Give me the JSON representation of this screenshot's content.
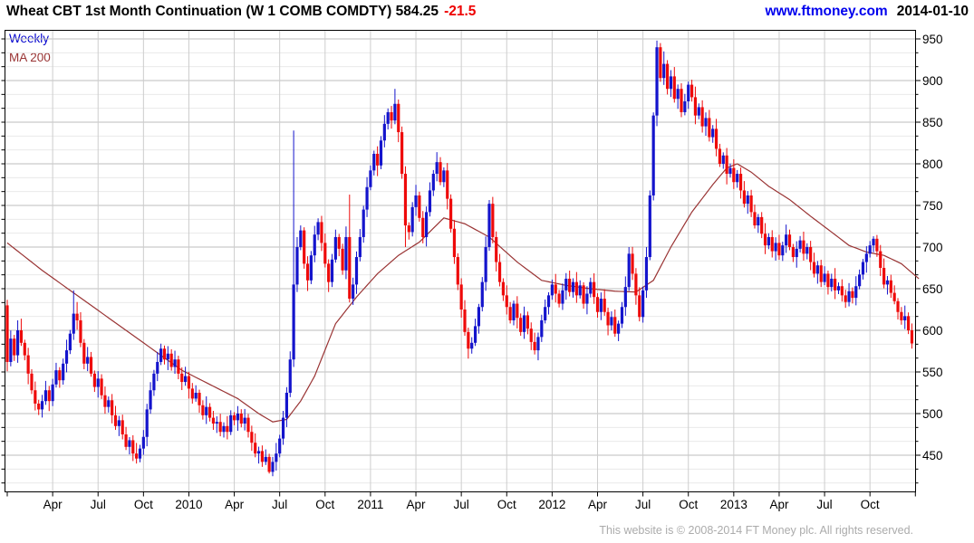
{
  "header": {
    "title": "Wheat CBT 1st Month Continuation (W 1 COMB COMDTY) 584.25",
    "change": "-21.5",
    "site": "www.ftmoney.com",
    "date": "2014-01-10"
  },
  "legend": {
    "series": "Weekly",
    "overlay": "MA 200"
  },
  "footer": {
    "copyright": "This website is © 2008-2014 FT Money plc. All rights reserved."
  },
  "colors": {
    "up": "#1414cc",
    "down": "#ee0a0a",
    "ma": "#993333",
    "grid_minor": "#e9e9e9",
    "grid_major": "#bdbdbd",
    "grid_vert": "#cdcdcd",
    "axis": "#000000",
    "change": "#ee0000",
    "link": "#0000ee",
    "weekly_label": "#0000cc",
    "footer_text": "#ababab",
    "label": "#000000"
  },
  "chart_data": {
    "type": "candlestick",
    "timeframe": "weekly",
    "title": "Wheat CBT 1st Month Continuation (W 1 COMB COMDTY)",
    "last_price": 584.25,
    "change": -21.5,
    "y_axis": {
      "ticks": [
        450,
        500,
        550,
        600,
        650,
        700,
        750,
        800,
        850,
        900,
        950
      ],
      "minor_per_major": 3,
      "position": "right"
    },
    "x_labels": [
      {
        "label": "Apr",
        "week": 13
      },
      {
        "label": "Jul",
        "week": 26
      },
      {
        "label": "Oct",
        "week": 39
      },
      {
        "label": "2010",
        "week": 52
      },
      {
        "label": "Apr",
        "week": 65
      },
      {
        "label": "Jul",
        "week": 78
      },
      {
        "label": "Oct",
        "week": 91
      },
      {
        "label": "2011",
        "week": 104
      },
      {
        "label": "Apr",
        "week": 117
      },
      {
        "label": "Jul",
        "week": 130
      },
      {
        "label": "Oct",
        "week": 143
      },
      {
        "label": "2012",
        "week": 156
      },
      {
        "label": "Apr",
        "week": 169
      },
      {
        "label": "Jul",
        "week": 182
      },
      {
        "label": "Oct",
        "week": 195
      },
      {
        "label": "2013",
        "week": 208
      },
      {
        "label": "Apr",
        "week": 221
      },
      {
        "label": "Jul",
        "week": 234
      },
      {
        "label": "Oct",
        "week": 247
      }
    ],
    "first_open": 630,
    "closes": [
      562,
      590,
      570,
      600,
      585,
      570,
      548,
      528,
      512,
      505,
      515,
      528,
      515,
      535,
      552,
      540,
      560,
      576,
      596,
      620,
      612,
      585,
      560,
      568,
      548,
      532,
      542,
      522,
      508,
      516,
      498,
      485,
      492,
      475,
      460,
      468,
      452,
      446,
      458,
      472,
      505,
      528,
      548,
      562,
      578,
      565,
      572,
      556,
      565,
      548,
      538,
      545,
      530,
      518,
      525,
      510,
      498,
      508,
      495,
      488,
      490,
      478,
      485,
      478,
      498,
      492,
      500,
      488,
      495,
      478,
      465,
      452,
      455,
      442,
      448,
      430,
      442,
      452,
      470,
      495,
      525,
      565,
      655,
      700,
      720,
      680,
      660,
      690,
      715,
      730,
      705,
      680,
      658,
      685,
      712,
      698,
      672,
      712,
      638,
      655,
      688,
      712,
      745,
      772,
      792,
      812,
      798,
      828,
      848,
      862,
      852,
      872,
      838,
      788,
      726,
      718,
      748,
      762,
      735,
      712,
      742,
      768,
      788,
      802,
      778,
      792,
      758,
      722,
      688,
      655,
      625,
      598,
      578,
      585,
      605,
      628,
      658,
      700,
      752,
      712,
      682,
      658,
      642,
      628,
      612,
      632,
      615,
      598,
      618,
      602,
      586,
      576,
      592,
      612,
      628,
      642,
      655,
      644,
      632,
      648,
      662,
      646,
      658,
      642,
      654,
      632,
      644,
      658,
      640,
      622,
      638,
      622,
      606,
      616,
      596,
      608,
      628,
      652,
      692,
      668,
      642,
      616,
      648,
      688,
      762,
      858,
      940,
      903,
      920,
      890,
      905,
      878,
      890,
      862,
      875,
      895,
      880,
      858,
      868,
      845,
      855,
      832,
      842,
      818,
      800,
      810,
      788,
      795,
      778,
      788,
      768,
      752,
      762,
      742,
      726,
      736,
      716,
      702,
      712,
      695,
      705,
      690,
      702,
      715,
      700,
      688,
      698,
      708,
      692,
      700,
      682,
      668,
      678,
      658,
      668,
      652,
      662,
      648,
      653,
      642,
      634,
      647,
      639,
      653,
      667,
      682,
      692,
      702,
      710,
      695,
      675,
      655,
      660,
      645,
      635,
      622,
      612,
      617,
      600,
      584.25
    ],
    "wick_pattern": [
      9,
      13,
      6,
      16,
      8,
      5,
      12,
      7,
      14,
      6,
      10,
      15,
      7,
      9,
      12,
      5,
      8,
      17,
      6,
      11
    ],
    "wick_overrides": {
      "4": {
        "high": 614
      },
      "19": {
        "high": 648
      },
      "20": {
        "high": 634
      },
      "36": {
        "low": 443
      },
      "37": {
        "low": 440
      },
      "75": {
        "low": 428
      },
      "82": {
        "high": 840,
        "low": 556
      },
      "98": {
        "high": 763
      },
      "111": {
        "high": 890
      },
      "114": {
        "low": 700
      },
      "132": {
        "low": 566
      },
      "151": {
        "low": 571
      },
      "178": {
        "high": 700
      },
      "186": {
        "high": 948
      },
      "187": {
        "high": 945
      },
      "188": {
        "high": 935
      },
      "240": {
        "low": 627
      },
      "248": {
        "high": 713
      },
      "259": {
        "low": 578
      }
    },
    "ma200_anchors": [
      [
        0,
        705
      ],
      [
        10,
        672
      ],
      [
        20,
        642
      ],
      [
        30,
        612
      ],
      [
        40,
        582
      ],
      [
        50,
        552
      ],
      [
        58,
        535
      ],
      [
        66,
        518
      ],
      [
        72,
        500
      ],
      [
        76,
        490
      ],
      [
        80,
        493
      ],
      [
        84,
        515
      ],
      [
        88,
        545
      ],
      [
        94,
        608
      ],
      [
        100,
        640
      ],
      [
        106,
        668
      ],
      [
        112,
        690
      ],
      [
        118,
        706
      ],
      [
        125,
        735
      ],
      [
        131,
        728
      ],
      [
        138,
        712
      ],
      [
        146,
        682
      ],
      [
        153,
        660
      ],
      [
        160,
        654
      ],
      [
        167,
        650
      ],
      [
        174,
        647
      ],
      [
        180,
        646
      ],
      [
        185,
        660
      ],
      [
        190,
        700
      ],
      [
        196,
        742
      ],
      [
        202,
        775
      ],
      [
        206,
        795
      ],
      [
        209,
        800
      ],
      [
        213,
        790
      ],
      [
        218,
        773
      ],
      [
        224,
        757
      ],
      [
        230,
        737
      ],
      [
        236,
        718
      ],
      [
        241,
        702
      ],
      [
        246,
        694
      ],
      [
        251,
        690
      ],
      [
        256,
        680
      ],
      [
        261,
        662
      ]
    ]
  }
}
